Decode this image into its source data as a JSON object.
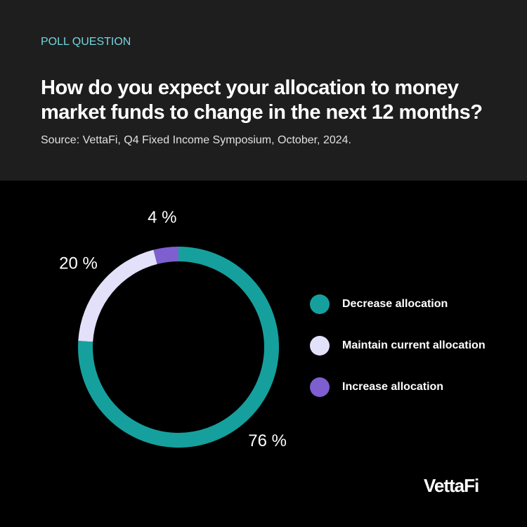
{
  "chart_data": {
    "type": "donut",
    "kicker": "POLL QUESTION",
    "title": "How do you expect your allocation to money market funds to change in the next 12 months?",
    "subtitle": "Source: VettaFi, Q4 Fixed Income Symposium, October, 2024.",
    "categories": [
      "Decrease allocation",
      "Maintain current allocation",
      "Increase allocation"
    ],
    "values": [
      76,
      20,
      4
    ],
    "value_labels": [
      "76 %",
      "20 %",
      "4 %"
    ],
    "colors": [
      "#16a09d",
      "#e3e0fa",
      "#7d5fd0"
    ],
    "logo": "VettaFi"
  }
}
